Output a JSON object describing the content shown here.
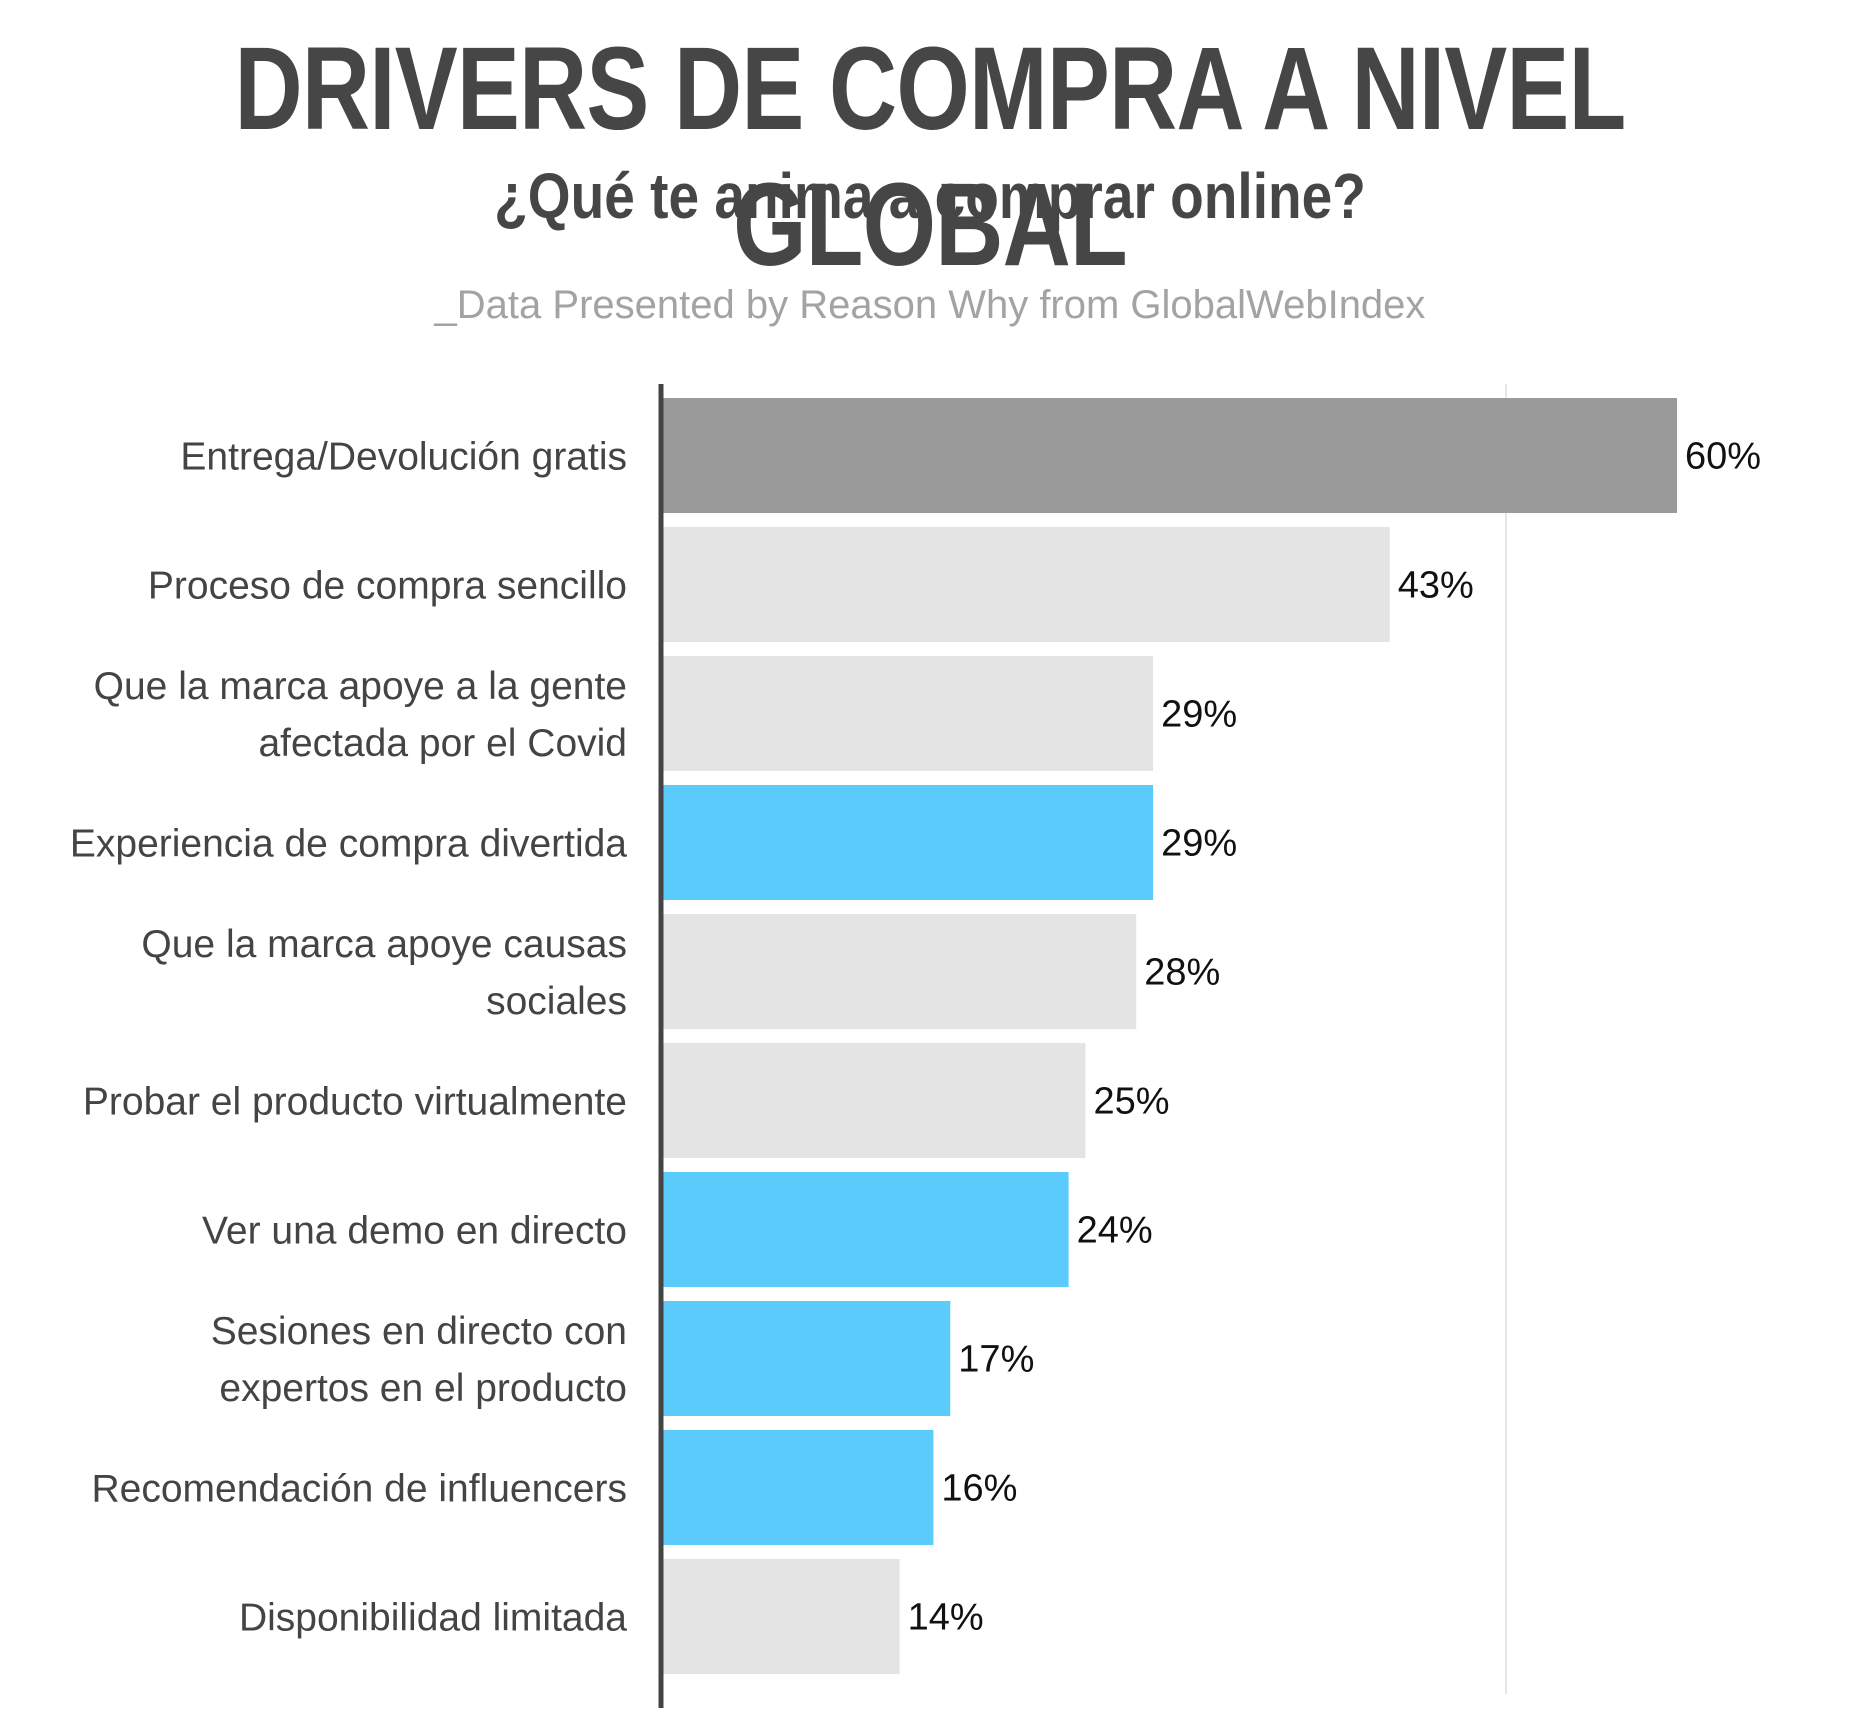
{
  "header": {
    "title": "DRIVERS DE COMPRA A NIVEL GLOBAL",
    "subtitle": "¿Qué te anima a comprar online?",
    "source": "_Data Presented by Reason Why from GlobalWebIndex"
  },
  "colors": {
    "highlight": "#9a9a9a",
    "default": "#e4e4e4",
    "accent": "#5bcbfc",
    "axis": "#444444",
    "gridline": "#e6e6e6"
  },
  "chart_data": {
    "type": "bar",
    "orientation": "horizontal",
    "title": "DRIVERS DE COMPRA A NIVEL GLOBAL",
    "subtitle": "¿Qué te anima a comprar online?",
    "xlabel": "",
    "ylabel": "",
    "xlim": [
      0,
      70
    ],
    "grid": "vertical line at 50",
    "unit": "%",
    "categories": [
      [
        "Entrega/Devolución gratis"
      ],
      [
        "Proceso de compra sencillo"
      ],
      [
        "Que la marca apoye a la gente",
        "afectada por el Covid"
      ],
      [
        "Experiencia de compra divertida"
      ],
      [
        "Que la marca apoye causas",
        "sociales"
      ],
      [
        "Probar el producto virtualmente"
      ],
      [
        "Ver una demo en directo"
      ],
      [
        "Sesiones en directo con",
        "expertos en el producto"
      ],
      [
        "Recomendación de influencers"
      ],
      [
        "Disponibilidad limitada"
      ]
    ],
    "values": [
      60,
      43,
      29,
      29,
      28,
      25,
      24,
      17,
      16,
      14
    ],
    "value_labels": [
      "60%",
      "43%",
      "29%",
      "29%",
      "28%",
      "25%",
      "24%",
      "17%",
      "16%",
      "14%"
    ],
    "bar_colors": [
      "highlight",
      "default",
      "default",
      "accent",
      "default",
      "default",
      "accent",
      "accent",
      "accent",
      "default"
    ]
  }
}
